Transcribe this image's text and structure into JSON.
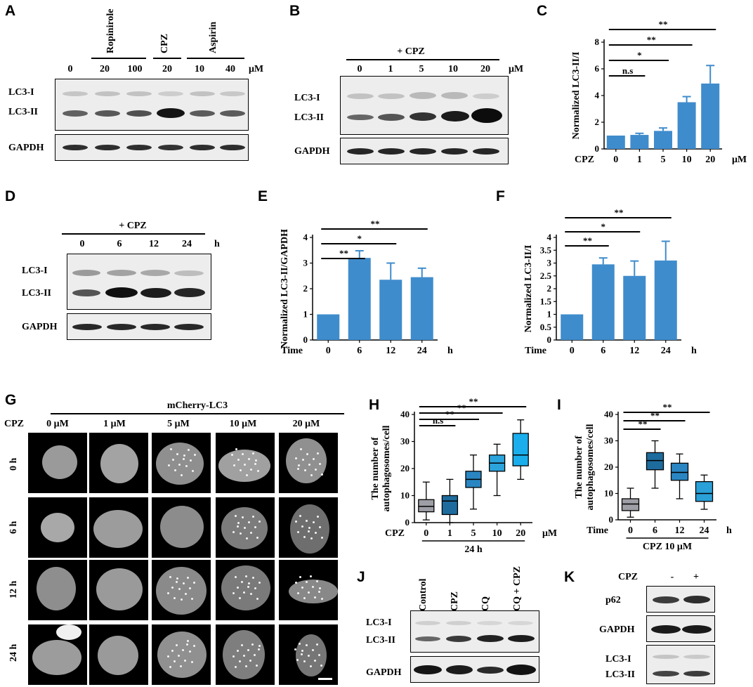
{
  "labels": {
    "A": "A",
    "B": "B",
    "C": "C",
    "D": "D",
    "E": "E",
    "F": "F",
    "G": "G",
    "H": "H",
    "I": "I",
    "J": "J",
    "K": "K"
  },
  "panelA": {
    "groups": [
      "Ropinirole",
      "CPZ",
      "Aspirin"
    ],
    "lanes": [
      "0",
      "20",
      "100",
      "20",
      "10",
      "40"
    ],
    "unit": "μM",
    "rows": [
      "LC3-I",
      "LC3-II",
      "GAPDH"
    ]
  },
  "panelB": {
    "group": "+ CPZ",
    "lanes": [
      "0",
      "1",
      "5",
      "10",
      "20"
    ],
    "unit": "μM",
    "rows": [
      "LC3-I",
      "LC3-II",
      "GAPDH"
    ]
  },
  "panelD": {
    "group": "+ CPZ",
    "lanes": [
      "0",
      "6",
      "12",
      "24"
    ],
    "unit": "h",
    "rows": [
      "LC3-I",
      "LC3-II",
      "GAPDH"
    ]
  },
  "panelG": {
    "title": "mCherry-LC3",
    "row_label": "CPZ",
    "cols": [
      "0 μM",
      "1 μM",
      "5 μM",
      "10 μM",
      "20 μM"
    ],
    "rows": [
      "0 h",
      "6 h",
      "12 h",
      "24 h"
    ]
  },
  "panelJ": {
    "lanes": [
      "Control",
      "CPZ",
      "CQ",
      "CQ + CPZ"
    ],
    "rows": [
      "LC3-I",
      "LC3-II",
      "GAPDH"
    ]
  },
  "panelK": {
    "header": "CPZ",
    "lanes": [
      "-",
      "+"
    ],
    "rows": [
      "p62",
      "GAPDH",
      "LC3-I",
      "LC3-II"
    ]
  },
  "chart_data": [
    {
      "panel": "C",
      "type": "bar",
      "categories": [
        "0",
        "1",
        "5",
        "10",
        "20"
      ],
      "values": [
        1.0,
        1.05,
        1.35,
        3.5,
        4.9
      ],
      "errors": [
        0,
        0.12,
        0.22,
        0.42,
        1.35
      ],
      "xlabel": "CPZ",
      "x_unit": "μM",
      "ylabel": "Normalized LC3-II/I",
      "ylim": [
        0,
        8
      ],
      "yticks": [
        "0",
        "2",
        "4",
        "6",
        "8"
      ],
      "significance": [
        {
          "to": "1",
          "label": "n.s"
        },
        {
          "to": "5",
          "label": "*"
        },
        {
          "to": "10",
          "label": "**"
        },
        {
          "to": "20",
          "label": "**"
        }
      ],
      "color": "#3f8ccc"
    },
    {
      "panel": "E",
      "type": "bar",
      "categories": [
        "0",
        "6",
        "12",
        "24"
      ],
      "values": [
        1.0,
        3.2,
        2.35,
        2.45
      ],
      "errors": [
        0,
        0.28,
        0.65,
        0.35
      ],
      "xlabel": "Time",
      "x_unit": "h",
      "ylabel": "Normalized LC3-II/GAPDH",
      "ylim": [
        0,
        4
      ],
      "yticks": [
        "0",
        "1",
        "2",
        "3",
        "4"
      ],
      "significance": [
        {
          "to": "6",
          "label": "**"
        },
        {
          "to": "12",
          "label": "*"
        },
        {
          "to": "24",
          "label": "**"
        }
      ],
      "color": "#3f8ccc"
    },
    {
      "panel": "F",
      "type": "bar",
      "categories": [
        "0",
        "6",
        "12",
        "24"
      ],
      "values": [
        1.0,
        2.95,
        2.5,
        3.1
      ],
      "errors": [
        0,
        0.25,
        0.58,
        0.75
      ],
      "xlabel": "Time",
      "x_unit": "h",
      "ylabel": "Normalized LC3-II/I",
      "ylim": [
        0,
        4
      ],
      "yticks": [
        "0",
        "0.5",
        "1",
        "1.5",
        "2",
        "2.5",
        "3",
        "3.5",
        "4"
      ],
      "significance": [
        {
          "to": "6",
          "label": "**"
        },
        {
          "to": "12",
          "label": "*"
        },
        {
          "to": "24",
          "label": "**"
        }
      ],
      "color": "#3f8ccc"
    },
    {
      "panel": "H",
      "type": "box",
      "categories": [
        "0",
        "1",
        "5",
        "10",
        "20"
      ],
      "boxes": [
        {
          "min": 1,
          "q1": 4,
          "median": 6,
          "q3": 8.5,
          "max": 15
        },
        {
          "min": 0,
          "q1": 3,
          "median": 8,
          "q3": 10,
          "max": 16
        },
        {
          "min": 5,
          "q1": 13,
          "median": 16,
          "q3": 19,
          "max": 25
        },
        {
          "min": 10,
          "q1": 19,
          "median": 22,
          "q3": 25,
          "max": 29
        },
        {
          "min": 16,
          "q1": 21,
          "median": 25,
          "q3": 33,
          "max": 38
        }
      ],
      "colors": [
        "#9e9ea6",
        "#1e6c9e",
        "#2a86c2",
        "#2ba4dc",
        "#1aaeec"
      ],
      "xlabel": "CPZ",
      "x_unit": "μM",
      "group_label": "24 h",
      "ylabel": [
        "The number of",
        "autophagosomes/cell"
      ],
      "ylim": [
        0,
        40
      ],
      "yticks": [
        "0",
        "10",
        "20",
        "30",
        "40"
      ],
      "significance": [
        {
          "to": "1",
          "label": "n.s"
        },
        {
          "to": "5",
          "label": "**"
        },
        {
          "to": "10",
          "label": "**"
        },
        {
          "to": "20",
          "label": "**"
        }
      ]
    },
    {
      "panel": "I",
      "type": "box",
      "categories": [
        "0",
        "6",
        "12",
        "24"
      ],
      "boxes": [
        {
          "min": 1,
          "q1": 3.5,
          "median": 6,
          "q3": 8,
          "max": 12
        },
        {
          "min": 12,
          "q1": 19,
          "median": 22.5,
          "q3": 25.5,
          "max": 30
        },
        {
          "min": 8,
          "q1": 15,
          "median": 18,
          "q3": 21.5,
          "max": 25
        },
        {
          "min": 4,
          "q1": 7,
          "median": 10,
          "q3": 14.5,
          "max": 17
        }
      ],
      "colors": [
        "#9e9ea6",
        "#1e6c9e",
        "#2a86c2",
        "#2aa0d8"
      ],
      "xlabel": "Time",
      "x_unit": "h",
      "group_label": "CPZ 10 μM",
      "ylabel": [
        "The number of",
        "autophagosomes/cell"
      ],
      "ylim": [
        0,
        40
      ],
      "yticks": [
        "0",
        "10",
        "20",
        "30",
        "40"
      ],
      "significance": [
        {
          "to": "6",
          "label": "**"
        },
        {
          "to": "12",
          "label": "**"
        },
        {
          "to": "24",
          "label": "**"
        }
      ]
    }
  ]
}
